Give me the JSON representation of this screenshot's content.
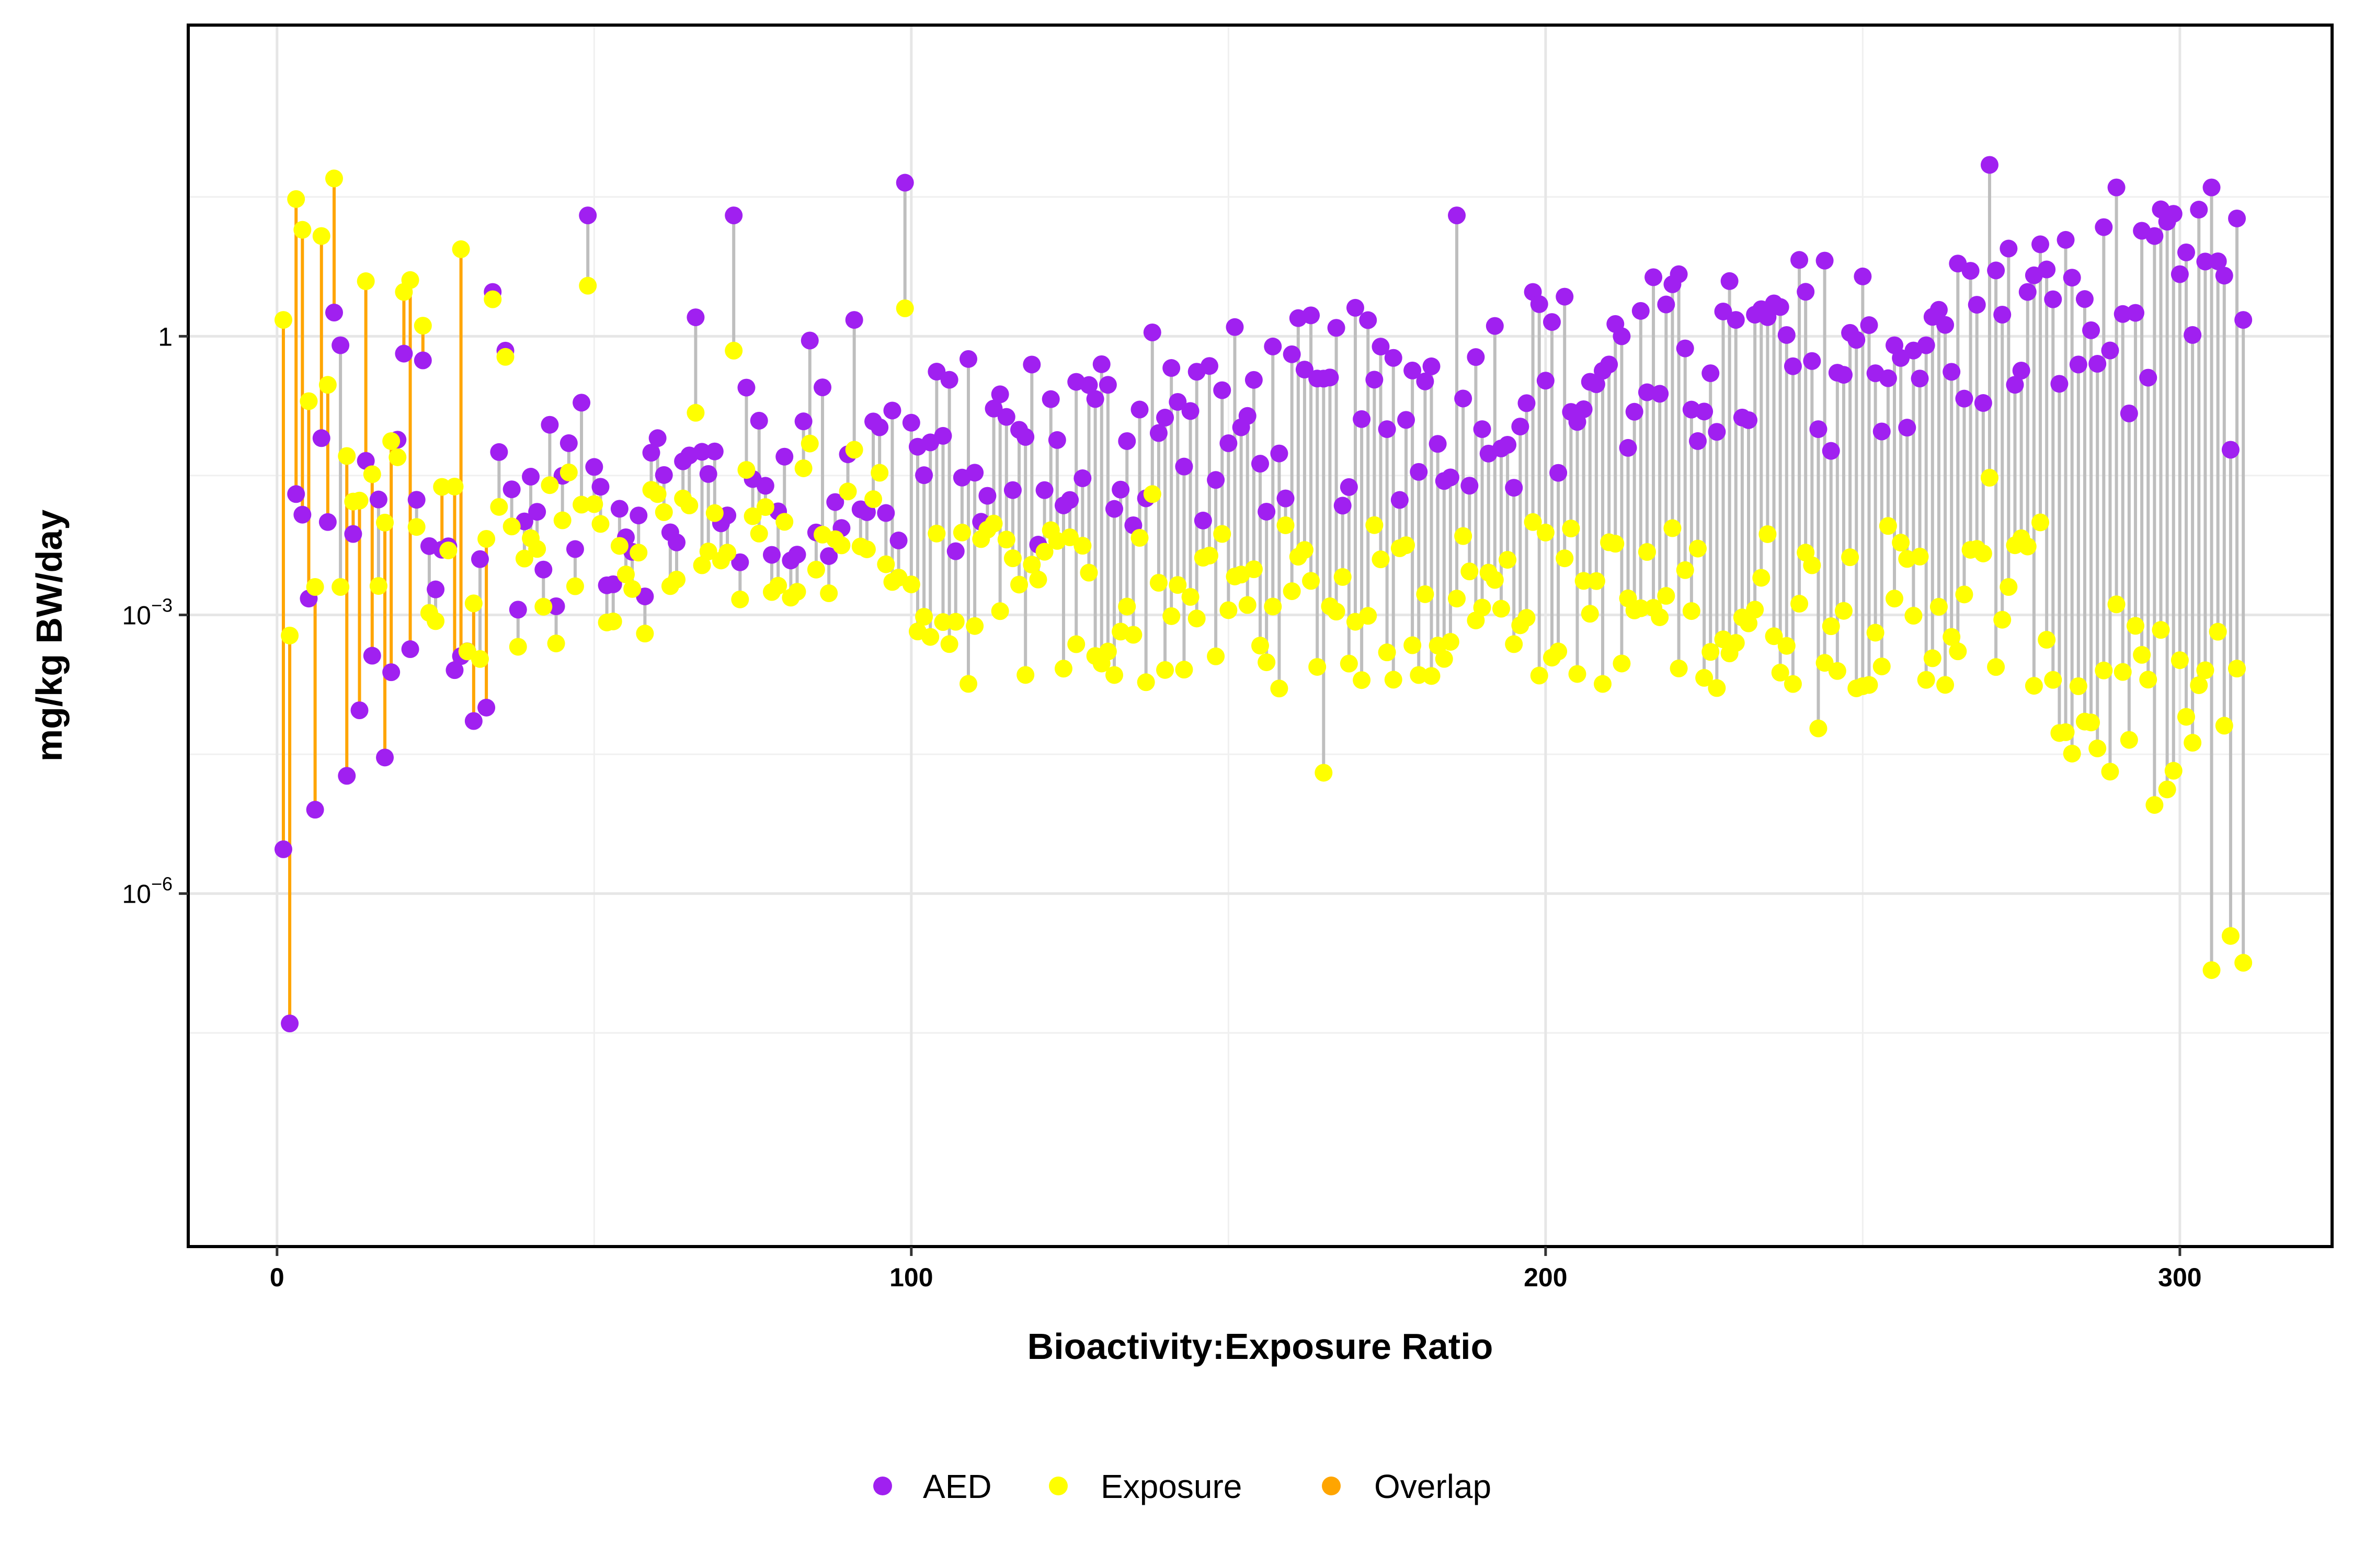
{
  "chart_data": {
    "type": "scatter",
    "subtype": "dumbbell",
    "xlabel": "Bioactivity:Exposure Ratio",
    "ylabel": "mg/kg BW/day",
    "xlim": [
      -14,
      324
    ],
    "ylim_log10": [
      -9.8,
      3.35
    ],
    "y_scale": "log10",
    "x_ticks": [
      0,
      100,
      200,
      300
    ],
    "y_ticks": [
      {
        "value": 1,
        "label_base": "1",
        "label_exp": ""
      },
      {
        "value": 0.001,
        "label_base": "10",
        "label_exp": "−3"
      },
      {
        "value": 1e-06,
        "label_base": "10",
        "label_exp": "−6"
      }
    ],
    "grid": true,
    "legend": {
      "position": "bottom",
      "entries": [
        {
          "label": "AED",
          "color": "#a020f0"
        },
        {
          "label": "Exposure",
          "color": "#ffff00"
        },
        {
          "label": "Overlap",
          "color": "#ffa500"
        }
      ]
    },
    "colors": {
      "aed": "#a020f0",
      "exposure": "#ffff00",
      "overlap": "#ffa500",
      "segment": "#bebebe"
    },
    "series": [
      {
        "name": "AED",
        "x": [
          1,
          2,
          3,
          4,
          5,
          6,
          7,
          8,
          9,
          10,
          20,
          23,
          34,
          36,
          49,
          60,
          66,
          72,
          84,
          91,
          99,
          130,
          138,
          165,
          186,
          190,
          198,
          212,
          226,
          230,
          243,
          255,
          260,
          270,
          280,
          290,
          296,
          301,
          305,
          308,
          310
        ],
        "y": [
          3e-06,
          4e-08,
          0.02,
          0.012,
          0.0015,
          8e-06,
          0.08,
          0.01,
          1.8,
          0.8,
          0.65,
          0.55,
          3,
          0.7,
          20,
          0.08,
          1.6,
          20,
          0.9,
          1.5,
          45,
          0.5,
          1.1,
          0.35,
          20,
          0.1,
          3,
          1.0,
          0.4,
          1.5,
          0.1,
          0.8,
          0.8,
          70,
          2.5,
          40,
          12,
          8,
          40,
          0.06,
          1.5
        ]
      },
      {
        "name": "Exposure",
        "x": [
          1,
          2,
          3,
          4,
          5,
          6,
          7,
          8,
          9,
          10,
          20,
          23,
          34,
          36,
          49,
          60,
          66,
          72,
          84,
          91,
          99,
          130,
          138,
          165,
          186,
          190,
          198,
          212,
          226,
          230,
          243,
          255,
          260,
          270,
          280,
          290,
          296,
          301,
          305,
          308,
          310
        ],
        "y": [
          1.5,
          0.0006,
          30,
          14,
          0.2,
          0.002,
          12,
          0.3,
          50,
          0.002,
          3,
          1.3,
          2.5,
          0.6,
          3.5,
          0.02,
          0.15,
          0.7,
          0.07,
          0.06,
          2,
          0.0003,
          0.02,
          2e-05,
          0.0015,
          0.0012,
          0.01,
          0.0003,
          0.0004,
          0.0005,
          6e-05,
          0.0015,
          0.0002,
          0.03,
          0.0002,
          0.0013,
          9e-06,
          8e-05,
          1.5e-07,
          3.5e-07,
          1.8e-07
        ]
      }
    ],
    "overlap_x_range": [
      0,
      33
    ],
    "n_points_x_range": [
      1,
      310
    ]
  }
}
